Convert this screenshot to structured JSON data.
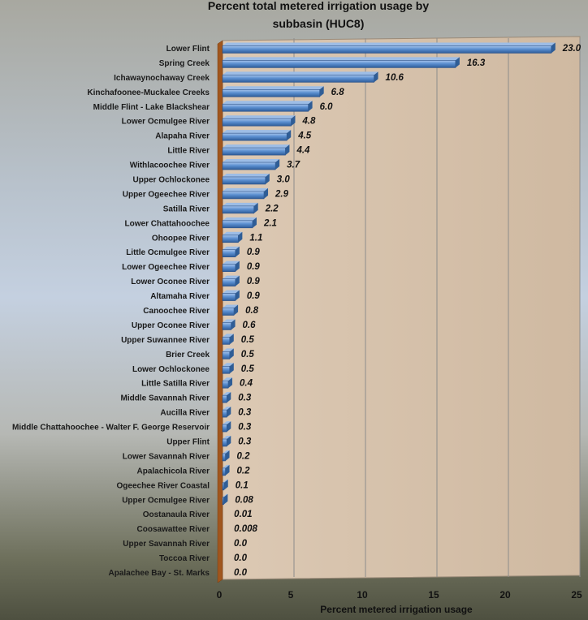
{
  "chart_data": {
    "type": "bar",
    "orientation": "horizontal",
    "title": "Percent total metered irrigation usage by subbasin (HUC8)",
    "title_lines": [
      "Percent total metered irrigation usage by",
      "subbasin (HUC8)"
    ],
    "xlabel": "Percent metered irrigation usage",
    "ylabel": "",
    "xlim": [
      0,
      25
    ],
    "xticks": [
      0,
      5,
      10,
      15,
      20,
      25
    ],
    "grid": true,
    "categories": [
      "Lower Flint",
      "Spring Creek",
      "Ichawaynochaway Creek",
      "Kinchafoonee-Muckalee Creeks",
      "Middle Flint - Lake Blackshear",
      "Lower Ocmulgee River",
      "Alapaha River",
      "Little River",
      "Withlacoochee River",
      "Upper Ochlockonee",
      "Upper Ogeechee River",
      "Satilla River",
      "Lower Chattahoochee",
      "Ohoopee River",
      "Little Ocmulgee River",
      "Lower Ogeechee River",
      "Lower Oconee River",
      "Altamaha River",
      "Canoochee River",
      "Upper Oconee River",
      "Upper Suwannee River",
      "Brier Creek",
      "Lower Ochlockonee",
      "Little Satilla River",
      "Middle Savannah River",
      "Aucilla River",
      "Middle Chattahoochee - Walter F. George Reservoir",
      "Upper Flint",
      "Lower Savannah River",
      "Apalachicola River",
      "Ogeechee River Coastal",
      "Upper Ocmulgee River",
      "Oostanaula River",
      "Coosawattee River",
      "Upper Savannah River",
      "Toccoa River",
      "Apalachee Bay - St. Marks"
    ],
    "values": [
      23.0,
      16.3,
      10.6,
      6.8,
      6.0,
      4.8,
      4.5,
      4.4,
      3.7,
      3.0,
      2.9,
      2.2,
      2.1,
      1.1,
      0.9,
      0.9,
      0.9,
      0.9,
      0.8,
      0.6,
      0.5,
      0.5,
      0.5,
      0.4,
      0.3,
      0.3,
      0.3,
      0.3,
      0.2,
      0.2,
      0.1,
      0.08,
      0.01,
      0.008,
      0.0,
      0.0,
      0.0
    ],
    "value_labels": [
      "23.0",
      "16.3",
      "10.6",
      "6.8",
      "6.0",
      "4.8",
      "4.5",
      "4.4",
      "3.7",
      "3.0",
      "2.9",
      "2.2",
      "2.1",
      "1.1",
      "0.9",
      "0.9",
      "0.9",
      "0.9",
      "0.8",
      "0.6",
      "0.5",
      "0.5",
      "0.5",
      "0.4",
      "0.3",
      "0.3",
      "0.3",
      "0.3",
      "0.2",
      "0.2",
      "0.1",
      "0.08",
      "0.01",
      "0.008",
      "0.0",
      "0.0",
      "0.0"
    ],
    "colors": {
      "bar": "#4f81bd",
      "bar_light": "#9dbde6",
      "bar_dark": "#2f5d96",
      "plot_wall": "#d8c4ae",
      "axis_wall": "#a0561e",
      "gridline": "#8c8c8c"
    }
  }
}
